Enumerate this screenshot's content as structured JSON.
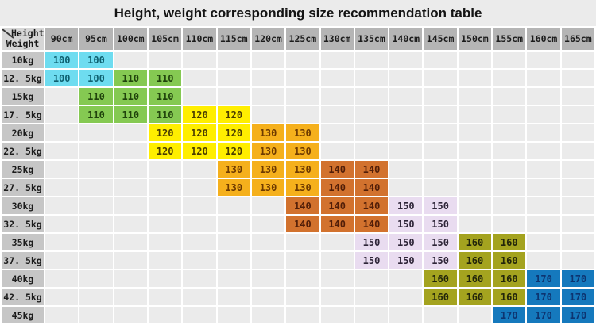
{
  "title": "Height, weight corresponding size recommendation table",
  "table": {
    "corner": {
      "top": "Height",
      "bottom": "Weight"
    },
    "columns": [
      "90cm",
      "95cm",
      "100cm",
      "105cm",
      "110cm",
      "115cm",
      "120cm",
      "125cm",
      "130cm",
      "135cm",
      "140cm",
      "145cm",
      "150cm",
      "155cm",
      "160cm",
      "165cm"
    ],
    "rows": [
      {
        "label": "10kg",
        "cells": [
          100,
          100,
          null,
          null,
          null,
          null,
          null,
          null,
          null,
          null,
          null,
          null,
          null,
          null,
          null,
          null
        ]
      },
      {
        "label": "12. 5kg",
        "cells": [
          100,
          100,
          110,
          110,
          null,
          null,
          null,
          null,
          null,
          null,
          null,
          null,
          null,
          null,
          null,
          null
        ]
      },
      {
        "label": "15kg",
        "cells": [
          null,
          110,
          110,
          110,
          null,
          null,
          null,
          null,
          null,
          null,
          null,
          null,
          null,
          null,
          null,
          null
        ]
      },
      {
        "label": "17. 5kg",
        "cells": [
          null,
          110,
          110,
          110,
          120,
          120,
          null,
          null,
          null,
          null,
          null,
          null,
          null,
          null,
          null,
          null
        ]
      },
      {
        "label": "20kg",
        "cells": [
          null,
          null,
          null,
          120,
          120,
          120,
          130,
          130,
          null,
          null,
          null,
          null,
          null,
          null,
          null,
          null
        ]
      },
      {
        "label": "22. 5kg",
        "cells": [
          null,
          null,
          null,
          120,
          120,
          120,
          130,
          130,
          null,
          null,
          null,
          null,
          null,
          null,
          null,
          null
        ]
      },
      {
        "label": "25kg",
        "cells": [
          null,
          null,
          null,
          null,
          null,
          130,
          130,
          130,
          140,
          140,
          null,
          null,
          null,
          null,
          null,
          null
        ]
      },
      {
        "label": "27. 5kg",
        "cells": [
          null,
          null,
          null,
          null,
          null,
          130,
          130,
          130,
          140,
          140,
          null,
          null,
          null,
          null,
          null,
          null
        ]
      },
      {
        "label": "30kg",
        "cells": [
          null,
          null,
          null,
          null,
          null,
          null,
          null,
          140,
          140,
          140,
          150,
          150,
          null,
          null,
          null,
          null
        ]
      },
      {
        "label": "32. 5kg",
        "cells": [
          null,
          null,
          null,
          null,
          null,
          null,
          null,
          140,
          140,
          140,
          150,
          150,
          null,
          null,
          null,
          null
        ]
      },
      {
        "label": "35kg",
        "cells": [
          null,
          null,
          null,
          null,
          null,
          null,
          null,
          null,
          null,
          150,
          150,
          150,
          160,
          160,
          null,
          null
        ]
      },
      {
        "label": "37. 5kg",
        "cells": [
          null,
          null,
          null,
          null,
          null,
          null,
          null,
          null,
          null,
          150,
          150,
          150,
          160,
          160,
          null,
          null
        ]
      },
      {
        "label": "40kg",
        "cells": [
          null,
          null,
          null,
          null,
          null,
          null,
          null,
          null,
          null,
          null,
          null,
          160,
          160,
          160,
          170,
          170
        ]
      },
      {
        "label": "42. 5kg",
        "cells": [
          null,
          null,
          null,
          null,
          null,
          null,
          null,
          null,
          null,
          null,
          null,
          160,
          160,
          160,
          170,
          170
        ]
      },
      {
        "label": "45kg",
        "cells": [
          null,
          null,
          null,
          null,
          null,
          null,
          null,
          null,
          null,
          null,
          null,
          null,
          null,
          170,
          170,
          170
        ]
      }
    ]
  },
  "size_colors": {
    "100": {
      "bg": "#6edcf0",
      "text": "#0e6070"
    },
    "110": {
      "bg": "#85c952",
      "text": "#20430c"
    },
    "120": {
      "bg": "#ffee00",
      "text": "#4a3c00"
    },
    "130": {
      "bg": "#f5b01c",
      "text": "#6e3a00"
    },
    "140": {
      "bg": "#d2722e",
      "text": "#511e08"
    },
    "150": {
      "bg": "#e9dcf0",
      "text": "#2e2538"
    },
    "160": {
      "bg": "#a4a31f",
      "text": "#22250a"
    },
    "170": {
      "bg": "#1579bd",
      "text": "#0d3470"
    }
  }
}
